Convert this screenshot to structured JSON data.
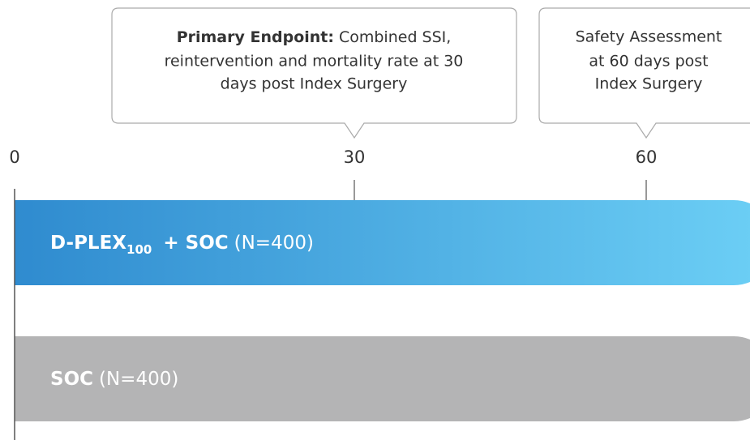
{
  "axis": {
    "ticks": [
      "0",
      "30",
      "60"
    ]
  },
  "callouts": [
    {
      "label": "Primary Endpoint:",
      "lines": [
        "Combined SSI,",
        "reintervention and mortality rate at 30",
        "days post Index Surgery"
      ]
    },
    {
      "lines": [
        "Safety Assessment",
        "at 60 days post",
        "Index Surgery"
      ]
    }
  ],
  "arms": [
    {
      "name": "D-PLEX",
      "subscript": "100",
      "suffix": "+ SOC",
      "n": "(N=400)"
    },
    {
      "name": "SOC",
      "n": "(N=400)"
    }
  ]
}
